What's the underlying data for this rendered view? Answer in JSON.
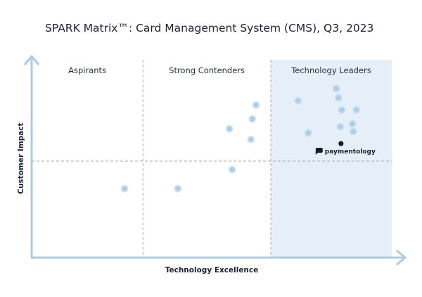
{
  "chart_data": {
    "type": "scatter",
    "title": "SPARK Matrix™: Card Management System (CMS), Q3, 2023",
    "xlabel": "Technology Excellence",
    "ylabel": "Customer Impact",
    "xlim": [
      0,
      100
    ],
    "ylim": [
      0,
      100
    ],
    "grid": false,
    "quadrants": [
      {
        "label": "Aspirants",
        "x_range": [
          0,
          30.9
        ]
      },
      {
        "label": "Strong Contenders",
        "x_range": [
          30.9,
          66.4
        ]
      },
      {
        "label": "Technology Leaders",
        "x_range": [
          66.4,
          100
        ],
        "shaded": true
      }
    ],
    "y_divider": 48.6,
    "colors": {
      "axis": "#a9cbe3",
      "points": "#a6c9e6",
      "leaders_bg": "#e6eff7",
      "highlight": "#141a2e",
      "divider": "#9a9a9a"
    },
    "points": [
      {
        "x": 62.3,
        "y": 77.1
      },
      {
        "x": 61.3,
        "y": 70.0
      },
      {
        "x": 54.9,
        "y": 65.0
      },
      {
        "x": 60.9,
        "y": 59.6
      },
      {
        "x": 55.7,
        "y": 44.3
      },
      {
        "x": 40.6,
        "y": 34.6
      },
      {
        "x": 25.8,
        "y": 34.6
      },
      {
        "x": 74.0,
        "y": 79.3
      },
      {
        "x": 84.6,
        "y": 85.4
      },
      {
        "x": 85.2,
        "y": 80.7
      },
      {
        "x": 86.1,
        "y": 74.6
      },
      {
        "x": 90.2,
        "y": 74.6
      },
      {
        "x": 89.1,
        "y": 67.5
      },
      {
        "x": 85.7,
        "y": 66.1
      },
      {
        "x": 89.3,
        "y": 63.6
      },
      {
        "x": 76.8,
        "y": 62.9
      }
    ],
    "highlight": {
      "name": "paymentology",
      "x": 85.9,
      "y": 57.5
    }
  }
}
